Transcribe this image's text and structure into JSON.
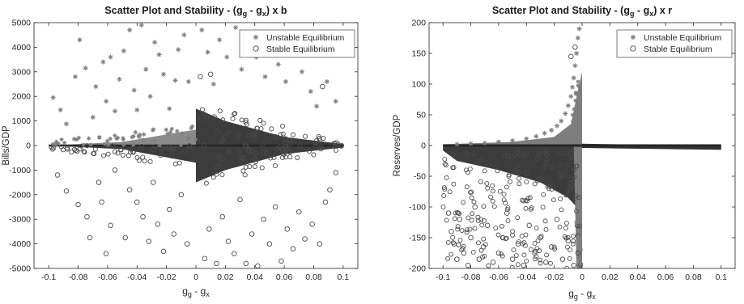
{
  "chart_data": [
    {
      "type": "scatter",
      "title": "Scatter Plot and Stability - (g",
      "title_sub1": "g",
      "title_mid": " - g",
      "title_sub2": "x",
      "title_end": ") x b",
      "xlabel": "g",
      "xlabel_sub1": "g",
      "xlabel_mid": " - g",
      "xlabel_sub2": "x",
      "ylabel": "Bills/GDP",
      "xlim": [
        -0.11,
        0.11
      ],
      "ylim": [
        -5000,
        5000
      ],
      "xticks": [
        -0.1,
        -0.08,
        -0.06,
        -0.04,
        -0.02,
        0,
        0.02,
        0.04,
        0.06,
        0.08,
        0.1
      ],
      "xtick_labels": [
        "-0.1",
        "-0.08",
        "-0.06",
        "-0.04",
        "-0.02",
        "0",
        "0.02",
        "0.04",
        "0.06",
        "0.08",
        "0.1"
      ],
      "yticks": [
        -5000,
        -4000,
        -3000,
        -2000,
        -1000,
        0,
        1000,
        2000,
        3000,
        4000,
        5000
      ],
      "ytick_labels": [
        "-5000",
        "-4000",
        "-3000",
        "-2000",
        "-1000",
        "0",
        "1000",
        "2000",
        "3000",
        "4000",
        "5000"
      ],
      "grid": false,
      "legend_position": "top-right",
      "series": [
        {
          "name": "Unstable Equilibrium",
          "marker": "asterisk",
          "color": "#7f7f7f"
        },
        {
          "name": "Stable Equilibrium",
          "marker": "circle",
          "color": "#4a4a4a"
        }
      ],
      "annotations": [
        {
          "name": "Unstable Equilibrium",
          "points": [
            [
              -0.097,
              1950
            ],
            [
              -0.092,
              1450
            ],
            [
              -0.088,
              880
            ],
            [
              -0.082,
              2800
            ],
            [
              -0.079,
              4300
            ],
            [
              -0.075,
              3150
            ],
            [
              -0.07,
              1150
            ],
            [
              -0.068,
              2400
            ],
            [
              -0.063,
              3400
            ],
            [
              -0.061,
              1800
            ],
            [
              -0.058,
              3600
            ],
            [
              -0.055,
              1400
            ],
            [
              -0.052,
              2700
            ],
            [
              -0.049,
              3850
            ],
            [
              -0.045,
              4700
            ],
            [
              -0.042,
              2250
            ],
            [
              -0.04,
              1450
            ],
            [
              -0.037,
              4900
            ],
            [
              -0.034,
              3100
            ],
            [
              -0.031,
              2000
            ],
            [
              -0.028,
              4200
            ],
            [
              -0.025,
              3700
            ],
            [
              -0.022,
              2900
            ],
            [
              -0.018,
              1500
            ],
            [
              -0.014,
              2650
            ],
            [
              -0.012,
              3900
            ],
            [
              -0.008,
              4500
            ],
            [
              -0.005,
              2600
            ],
            [
              0.004,
              4700
            ],
            [
              0.008,
              3800
            ],
            [
              0.012,
              2500
            ],
            [
              0.016,
              4300
            ],
            [
              0.021,
              3600
            ],
            [
              0.027,
              4800
            ],
            [
              0.031,
              3100
            ],
            [
              0.036,
              4000
            ],
            [
              0.041,
              3600
            ],
            [
              0.047,
              2800
            ],
            [
              0.052,
              4600
            ],
            [
              0.056,
              3300
            ],
            [
              0.061,
              2600
            ],
            [
              0.066,
              4100
            ],
            [
              0.072,
              3000
            ],
            [
              0.078,
              2200
            ],
            [
              0.082,
              1600
            ],
            [
              0.089,
              2600
            ],
            [
              0.095,
              1800
            ]
          ]
        },
        {
          "name": "Stable Equilibrium",
          "points": [
            [
              -0.094,
              -1200
            ],
            [
              -0.088,
              -1850
            ],
            [
              -0.08,
              -2400
            ],
            [
              -0.074,
              -2900
            ],
            [
              -0.072,
              -3750
            ],
            [
              -0.066,
              -1500
            ],
            [
              -0.064,
              -2300
            ],
            [
              -0.061,
              -4400
            ],
            [
              -0.058,
              -3250
            ],
            [
              -0.055,
              -1000
            ],
            [
              -0.048,
              -3750
            ],
            [
              -0.045,
              -1800
            ],
            [
              -0.04,
              -2300
            ],
            [
              -0.036,
              -2900
            ],
            [
              -0.032,
              -3900
            ],
            [
              -0.029,
              -1500
            ],
            [
              -0.026,
              -3200
            ],
            [
              -0.022,
              -4300
            ],
            [
              -0.018,
              -2600
            ],
            [
              -0.015,
              -3600
            ],
            [
              -0.01,
              -2000
            ],
            [
              -0.006,
              -4000
            ],
            [
              0.003,
              2800
            ],
            [
              0.006,
              -4600
            ],
            [
              0.009,
              -3400
            ],
            [
              0.014,
              -4800
            ],
            [
              0.018,
              -2900
            ],
            [
              0.022,
              -3900
            ],
            [
              0.026,
              -4400
            ],
            [
              0.03,
              -2200
            ],
            [
              0.034,
              -4800
            ],
            [
              0.038,
              -3600
            ],
            [
              0.042,
              -4900
            ],
            [
              0.046,
              -3000
            ],
            [
              0.05,
              -4000
            ],
            [
              0.054,
              -2500
            ],
            [
              0.058,
              -4700
            ],
            [
              0.062,
              -3400
            ],
            [
              0.066,
              -4200
            ],
            [
              0.07,
              -2700
            ],
            [
              0.074,
              -3800
            ],
            [
              0.079,
              -3200
            ],
            [
              0.084,
              -4000
            ],
            [
              0.088,
              -2300
            ],
            [
              0.091,
              -1800
            ],
            [
              0.095,
              -1100
            ],
            [
              0.086,
              2400
            ],
            [
              0.01,
              2900
            ]
          ]
        }
      ]
    },
    {
      "type": "scatter",
      "title": "Scatter Plot and Stability - (g",
      "title_sub1": "g",
      "title_mid": " - g",
      "title_sub2": "x",
      "title_end": ") x r",
      "xlabel": "g",
      "xlabel_sub1": "g",
      "xlabel_mid": " - g",
      "xlabel_sub2": "x",
      "ylabel": "Reserves/GDP",
      "xlim": [
        -0.11,
        0.11
      ],
      "ylim": [
        -200,
        200
      ],
      "xticks": [
        -0.1,
        -0.08,
        -0.06,
        -0.04,
        -0.02,
        0,
        0.02,
        0.04,
        0.06,
        0.08,
        0.1
      ],
      "xtick_labels": [
        "-0.1",
        "-0.08",
        "-0.06",
        "-0.04",
        "-0.02",
        "0",
        "0.02",
        "0.04",
        "0.06",
        "0.08",
        "0.1"
      ],
      "yticks": [
        -200,
        -150,
        -100,
        -50,
        0,
        50,
        100,
        150,
        200
      ],
      "ytick_labels": [
        "-200",
        "-150",
        "-100",
        "-50",
        "0",
        "50",
        "100",
        "150",
        "200"
      ],
      "grid": false,
      "legend_position": "top-right",
      "series": [
        {
          "name": "Unstable Equilibrium",
          "marker": "asterisk",
          "color": "#7f7f7f"
        },
        {
          "name": "Stable Equilibrium",
          "marker": "circle",
          "color": "#4a4a4a"
        }
      ],
      "annotations": [
        {
          "name": "Unstable Equilibrium",
          "points": [
            [
              -0.002,
              190
            ],
            [
              -0.003,
              175
            ],
            [
              -0.004,
              150
            ],
            [
              -0.005,
              130
            ],
            [
              -0.006,
              110
            ],
            [
              -0.007,
              95
            ],
            [
              -0.008,
              80
            ],
            [
              -0.01,
              65
            ],
            [
              -0.012,
              52
            ],
            [
              -0.015,
              40
            ],
            [
              -0.018,
              32
            ],
            [
              -0.022,
              25
            ],
            [
              -0.027,
              20
            ],
            [
              -0.033,
              15
            ],
            [
              -0.04,
              11
            ],
            [
              -0.05,
              8
            ],
            [
              -0.06,
              6
            ],
            [
              -0.07,
              4
            ],
            [
              -0.08,
              3
            ],
            [
              -0.09,
              2
            ],
            [
              -0.001,
              -170
            ],
            [
              -0.002,
              -190
            ],
            [
              -0.003,
              -150
            ],
            [
              -0.004,
              -125
            ]
          ]
        },
        {
          "name": "Stable Equilibrium",
          "points": [
            [
              -0.096,
              -110
            ],
            [
              -0.094,
              -140
            ],
            [
              -0.092,
              -160
            ],
            [
              -0.09,
              -185
            ],
            [
              -0.088,
              -120
            ],
            [
              -0.085,
              -175
            ],
            [
              -0.082,
              -195
            ],
            [
              -0.08,
              -150
            ],
            [
              -0.077,
              -100
            ],
            [
              -0.074,
              -185
            ],
            [
              -0.071,
              -165
            ],
            [
              -0.068,
              -130
            ],
            [
              -0.064,
              -190
            ],
            [
              -0.06,
              -175
            ],
            [
              -0.057,
              -150
            ],
            [
              -0.054,
              -110
            ],
            [
              -0.05,
              -185
            ],
            [
              -0.046,
              -160
            ],
            [
              -0.042,
              -195
            ],
            [
              -0.038,
              -130
            ],
            [
              -0.034,
              -175
            ],
            [
              -0.03,
              -150
            ],
            [
              -0.026,
              -190
            ],
            [
              -0.022,
              -165
            ],
            [
              -0.018,
              -120
            ],
            [
              -0.014,
              -185
            ],
            [
              -0.01,
              -155
            ],
            [
              -0.006,
              -195
            ],
            [
              -0.003,
              -175
            ],
            [
              -0.008,
              145
            ],
            [
              -0.005,
              160
            ]
          ]
        }
      ]
    }
  ]
}
